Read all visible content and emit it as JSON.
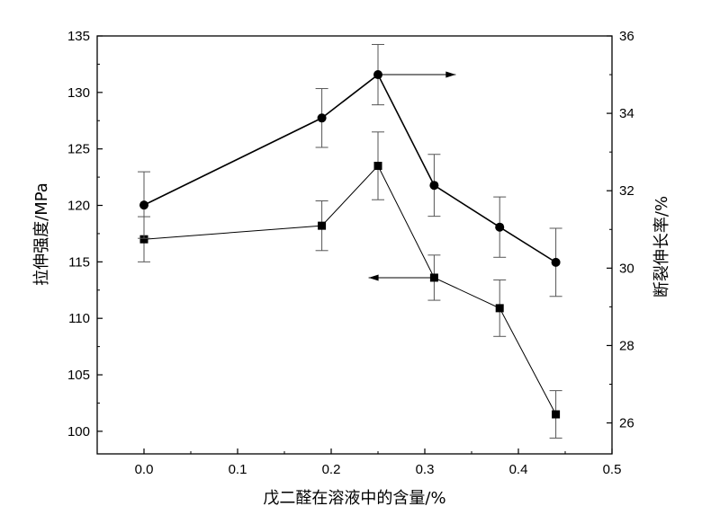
{
  "chart_data": {
    "type": "line",
    "title": "",
    "xlabel": "戊二醛在溶液中的含量/%",
    "ylabel_left": "拉伸强度/MPa",
    "ylabel_right": "断裂伸长率/%",
    "xlim": [
      -0.05,
      0.5
    ],
    "ylim_left": [
      98,
      135
    ],
    "ylim_right": [
      25.2,
      36
    ],
    "x_ticks": [
      "0.0",
      "0.1",
      "0.2",
      "0.3",
      "0.4",
      "0.5"
    ],
    "y_left_ticks": [
      "100",
      "105",
      "110",
      "115",
      "120",
      "125",
      "130",
      "135"
    ],
    "y_right_ticks": [
      "26",
      "28",
      "30",
      "32",
      "34",
      "36"
    ],
    "grid": false,
    "series": [
      {
        "axis": "left",
        "marker": "square",
        "x": [
          0.0,
          0.19,
          0.25,
          0.31,
          0.38,
          0.44
        ],
        "y": [
          117.0,
          118.2,
          123.5,
          113.6,
          110.9,
          101.5
        ],
        "error": [
          2.0,
          2.2,
          3.0,
          2.0,
          2.5,
          2.1
        ]
      },
      {
        "axis": "right",
        "marker": "circle",
        "x": [
          0.0,
          0.19,
          0.25,
          0.31,
          0.38,
          0.44
        ],
        "y": [
          31.63,
          33.88,
          35.0,
          32.14,
          31.06,
          30.15
        ],
        "error": [
          0.86,
          0.76,
          0.78,
          0.8,
          0.78,
          0.88
        ]
      }
    ],
    "annotations": [
      {
        "type": "arrow",
        "direction": "right",
        "x_from": 0.25,
        "x_to": 0.333,
        "y": 35.0,
        "axis": "right"
      },
      {
        "type": "arrow",
        "direction": "left",
        "x_from": 0.31,
        "x_to": 0.24,
        "y": 113.6,
        "axis": "left"
      }
    ]
  }
}
